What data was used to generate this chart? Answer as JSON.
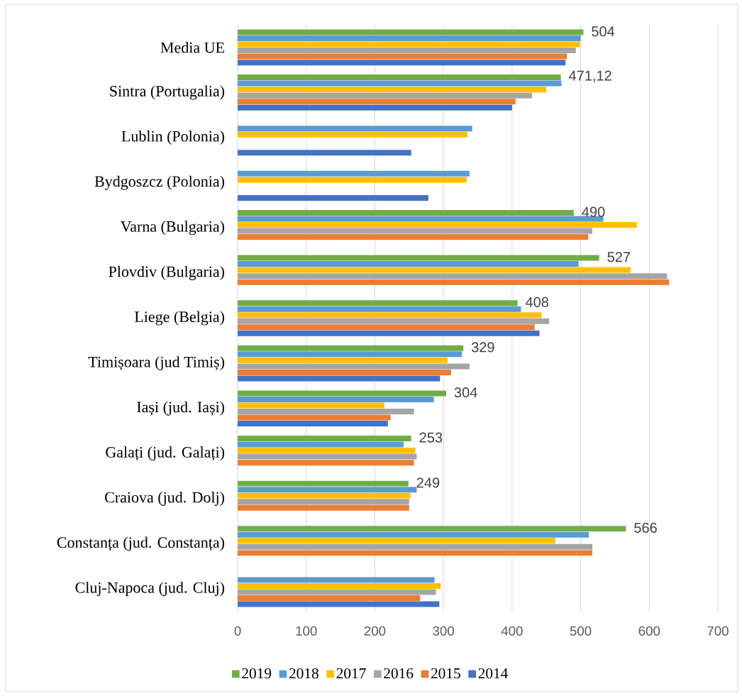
{
  "chart_data": {
    "type": "bar",
    "orientation": "horizontal",
    "categories": [
      "Media UE",
      "Sintra (Portugalia)",
      "Lublin (Polonia)",
      "Bydgoszcz (Polonia)",
      "Varna (Bulgaria)",
      "Plovdiv (Bulgaria)",
      "Liege (Belgia)",
      "Timișoara (jud Timiș)",
      "Iași (jud. Iași)",
      "Galați (jud. Galați)",
      "Craiova (jud. Dolj)",
      "Constanța (jud. Constanța)",
      "Cluj-Napoca (jud. Cluj)"
    ],
    "series": [
      {
        "name": "2019",
        "color": "#70ad47",
        "values": [
          504,
          471.12,
          null,
          null,
          490,
          527,
          408,
          329,
          304,
          253,
          249,
          566,
          null
        ],
        "value_labels": [
          "504",
          "471,12",
          null,
          null,
          "490",
          "527",
          "408",
          "329",
          "304",
          "253",
          "249",
          "566",
          null
        ]
      },
      {
        "name": "2018",
        "color": "#5b9bd5",
        "values": [
          500,
          472,
          342,
          338,
          533,
          497,
          413,
          327,
          286,
          242,
          261,
          512,
          287
        ]
      },
      {
        "name": "2017",
        "color": "#ffc000",
        "values": [
          499,
          450,
          335,
          334,
          582,
          573,
          443,
          306,
          214,
          259,
          252,
          463,
          296
        ]
      },
      {
        "name": "2016",
        "color": "#a5a5a5",
        "values": [
          493,
          429,
          null,
          null,
          517,
          626,
          454,
          338,
          257,
          261,
          250,
          517,
          289
        ]
      },
      {
        "name": "2015",
        "color": "#ed7d31",
        "values": [
          480,
          405,
          null,
          null,
          511,
          629,
          433,
          311,
          223,
          257,
          250,
          517,
          266
        ]
      },
      {
        "name": "2014",
        "color": "#4472c4",
        "values": [
          478,
          400,
          253,
          278,
          null,
          null,
          440,
          295,
          219,
          null,
          null,
          null,
          294
        ]
      }
    ],
    "xlim": [
      0,
      700
    ],
    "xticks": [
      0,
      100,
      200,
      300,
      400,
      500,
      600,
      700
    ],
    "grid": "x",
    "legend": "bottom"
  }
}
